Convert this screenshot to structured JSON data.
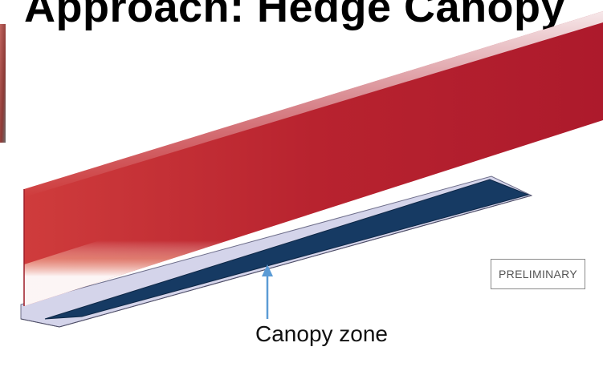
{
  "slide": {
    "title": "Approach: Hedge Canopy",
    "badge": "PRELIMINARY",
    "callout": "Canopy zone"
  },
  "colors": {
    "wall_red": "#b11d2e",
    "canopy_navy": "#163a63",
    "floor_lavender": "#d4d4ea",
    "arrow_blue": "#5b9bd5"
  }
}
